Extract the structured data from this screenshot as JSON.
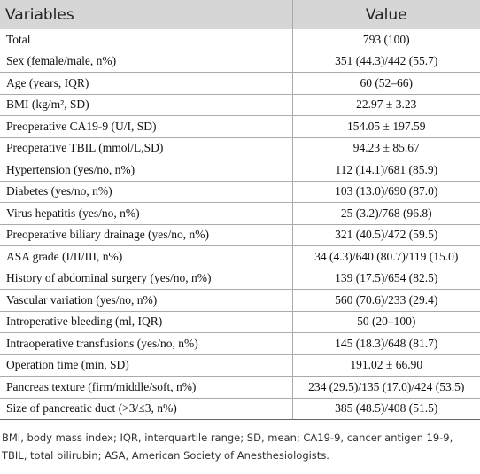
{
  "table": {
    "header": [
      "Variables",
      "Value"
    ],
    "rows": [
      [
        "Total",
        "793 (100)"
      ],
      [
        "Sex (female/male, n%)",
        "351 (44.3)/442 (55.7)"
      ],
      [
        "Age (years, IQR)",
        "60 (52–66)"
      ],
      [
        "BMI (kg/m², SD)",
        "22.97 ± 3.23"
      ],
      [
        "Preoperative CA19-9 (U/I, SD)",
        "154.05 ± 197.59"
      ],
      [
        "Preoperative TBIL (mmol/L,SD)",
        "94.23 ± 85.67"
      ],
      [
        "Hypertension (yes/no, n%)",
        "112 (14.1)/681 (85.9)"
      ],
      [
        "Diabetes (yes/no, n%)",
        "103 (13.0)/690 (87.0)"
      ],
      [
        "Virus hepatitis (yes/no, n%)",
        "25 (3.2)/768 (96.8)"
      ],
      [
        "Preoperative biliary drainage (yes/no, n%)",
        "321 (40.5)/472 (59.5)"
      ],
      [
        "ASA grade (I/II/III, n%)",
        "34 (4.3)/640 (80.7)/119 (15.0)"
      ],
      [
        "History of abdominal surgery (yes/no, n%)",
        "139 (17.5)/654 (82.5)"
      ],
      [
        "Vascular variation (yes/no, n%)",
        "560 (70.6)/233 (29.4)"
      ],
      [
        "Introperative bleeding (ml, IQR)",
        "50 (20–100)"
      ],
      [
        "Intraoperative transfusions (yes/no, n%)",
        "145 (18.3)/648 (81.7)"
      ],
      [
        "Operation time (min, SD)",
        "191.02 ± 66.90"
      ],
      [
        "Pancreas texture (firm/middle/soft, n%)",
        "234 (29.5)/135 (17.0)/424 (53.5)"
      ],
      [
        "Size of pancreatic duct (>3/≤3, n%)",
        "385 (48.5)/408 (51.5)"
      ]
    ]
  },
  "footnote": "BMI, body mass index; IQR, interquartile range; SD, mean; CA19-9, cancer antigen 19-9, TBIL, total bilirubin; ASA, American Society of Anesthesiologists."
}
